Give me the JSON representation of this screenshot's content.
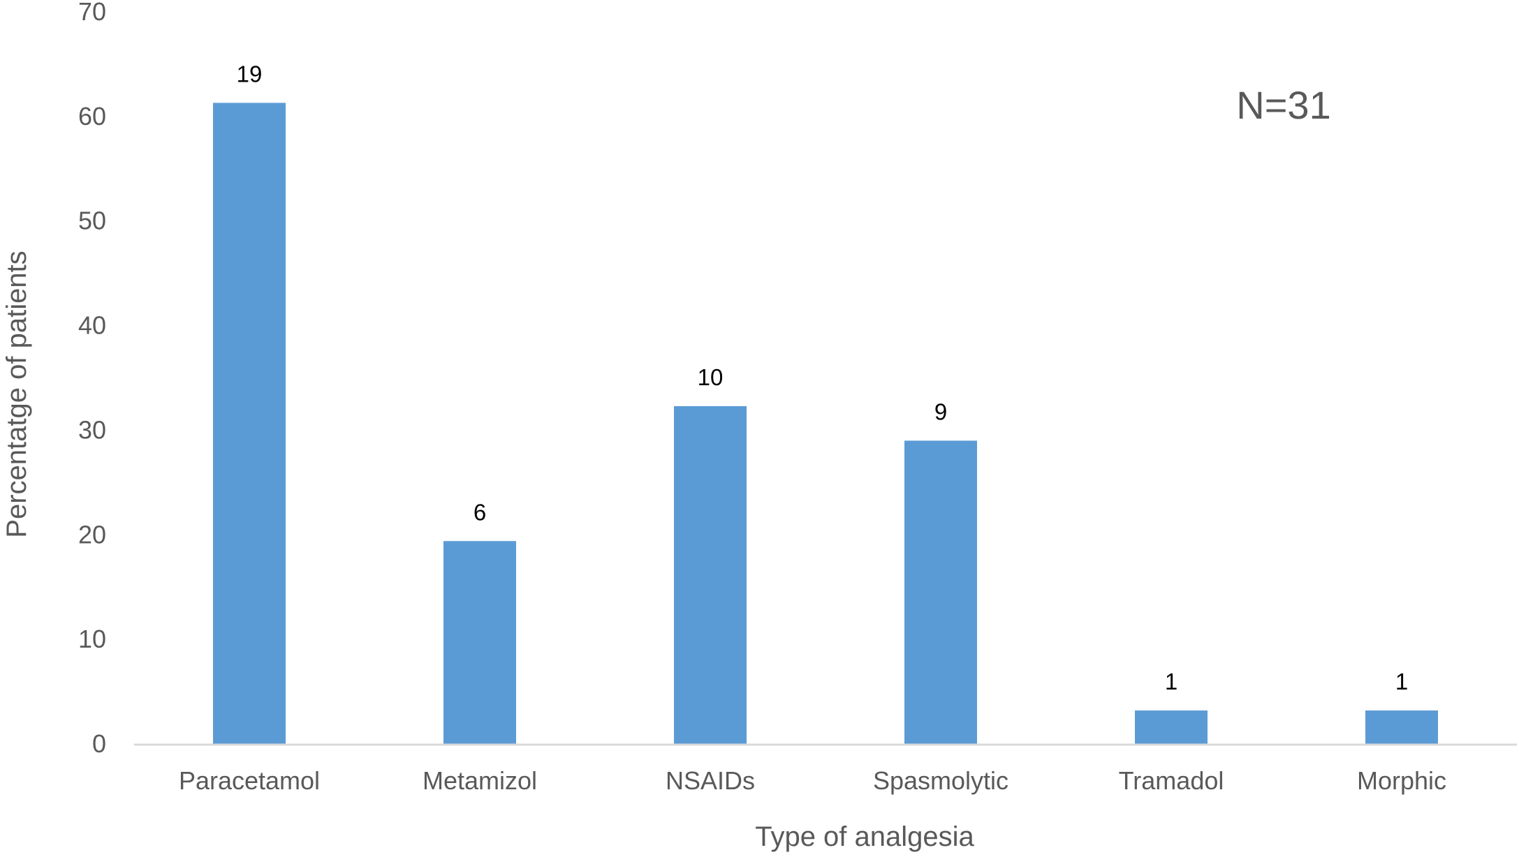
{
  "chart_data": {
    "type": "bar",
    "categories": [
      "Paracetamol",
      "Metamizol",
      "NSAIDs",
      "Spasmolytic",
      "Tramadol",
      "Morphic"
    ],
    "values": [
      61.3,
      19.4,
      32.3,
      29.0,
      3.2,
      3.2
    ],
    "data_labels": [
      "19",
      "6",
      "10",
      "9",
      "1",
      "1"
    ],
    "xlabel": "Type of analgesia",
    "ylabel": "Percentatge of patients",
    "ylim": [
      0,
      70
    ],
    "yticks": [
      "0",
      "10",
      "20",
      "30",
      "40",
      "50",
      "60",
      "70"
    ],
    "annotation": "N=31",
    "grid": false,
    "bar_color": "#5b9bd5",
    "axis_color": "#d9d9d9"
  }
}
